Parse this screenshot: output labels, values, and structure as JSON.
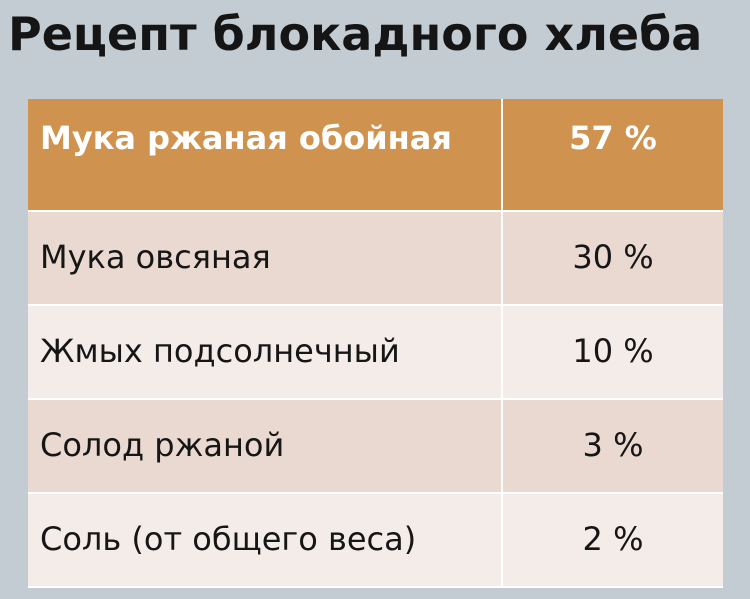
{
  "title": "Рецепт блокадного хлеба",
  "colors": {
    "background": "#c3ccd3",
    "header_row": "#d0924f",
    "row_odd": "#ead9d0",
    "row_even": "#f4ece9"
  },
  "table": {
    "header": {
      "ingredient": "Мука ржаная обойная",
      "share": "57 %"
    },
    "rows": [
      {
        "ingredient": "Мука овсяная",
        "share": "30 %"
      },
      {
        "ingredient": "Жмых подсолнечный",
        "share": "10 %"
      },
      {
        "ingredient": "Солод ржаной",
        "share": "3 %"
      },
      {
        "ingredient": "Соль (от общего веса)",
        "share": "2 %"
      }
    ]
  }
}
